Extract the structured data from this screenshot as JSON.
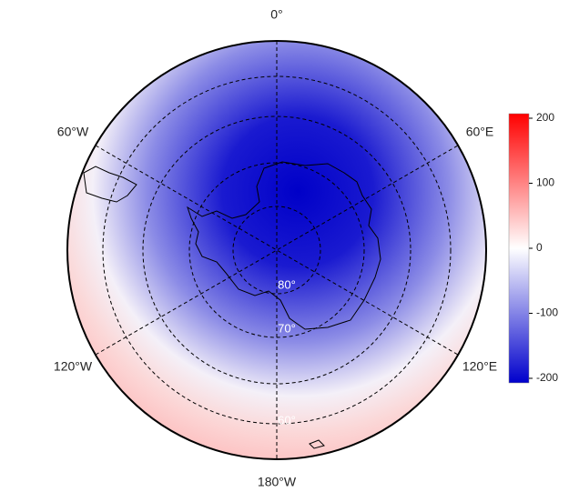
{
  "map": {
    "longitude_labels": [
      "0°",
      "60°E",
      "120°E",
      "180°W",
      "120°W",
      "60°W"
    ],
    "latitude_labels": [
      "80°",
      "70°",
      "60°"
    ],
    "colorbar": {
      "clim": [
        -200,
        200
      ],
      "ticks": [
        200,
        100,
        0,
        -100,
        -200
      ],
      "colors": [
        "#0000cc",
        "#ffffff",
        "#ff0000"
      ]
    }
  }
}
